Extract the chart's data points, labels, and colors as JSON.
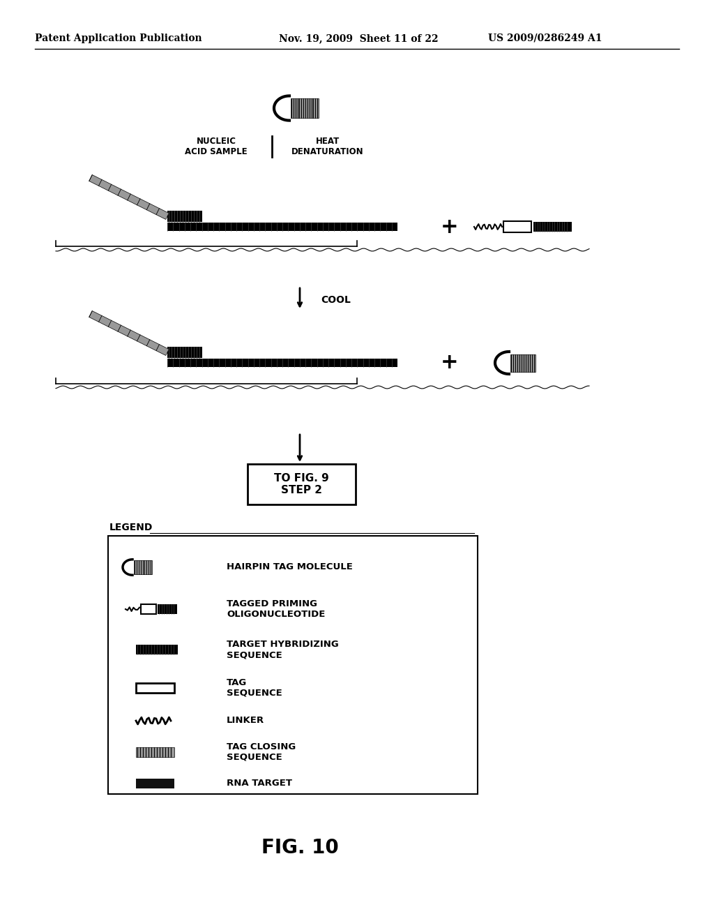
{
  "header_left": "Patent Application Publication",
  "header_mid": "Nov. 19, 2009  Sheet 11 of 22",
  "header_right": "US 2009/0286249 A1",
  "fig_label": "FIG. 10",
  "step_label1": "NUCLEIC\nACID SAMPLE",
  "step_label2": "HEAT\nDENATURATION",
  "cool_label": "↓ COOL",
  "box_label": "TO FIG. 9\nSTEP 2",
  "legend_title": "LEGEND",
  "legend_items": [
    {
      "symbol": "hairpin",
      "label": "HAIRPIN TAG MOLECULE"
    },
    {
      "symbol": "tagged_priming",
      "label": "TAGGED PRIMING\nOLIGONUCLEOTIDE"
    },
    {
      "symbol": "target_hyb",
      "label": "TARGET HYBRIDIZING\nSEQUENCE"
    },
    {
      "symbol": "tag_seq",
      "label": "TAG\nSEQUENCE"
    },
    {
      "symbol": "linker",
      "label": "LINKER"
    },
    {
      "symbol": "tag_closing",
      "label": "TAG CLOSING\nSEQUENCE"
    },
    {
      "symbol": "rna_target",
      "label": "RNA TARGET"
    }
  ],
  "bg_color": "#ffffff",
  "text_color": "#000000",
  "dark_color": "#1a1a1a",
  "gray_color": "#555555"
}
